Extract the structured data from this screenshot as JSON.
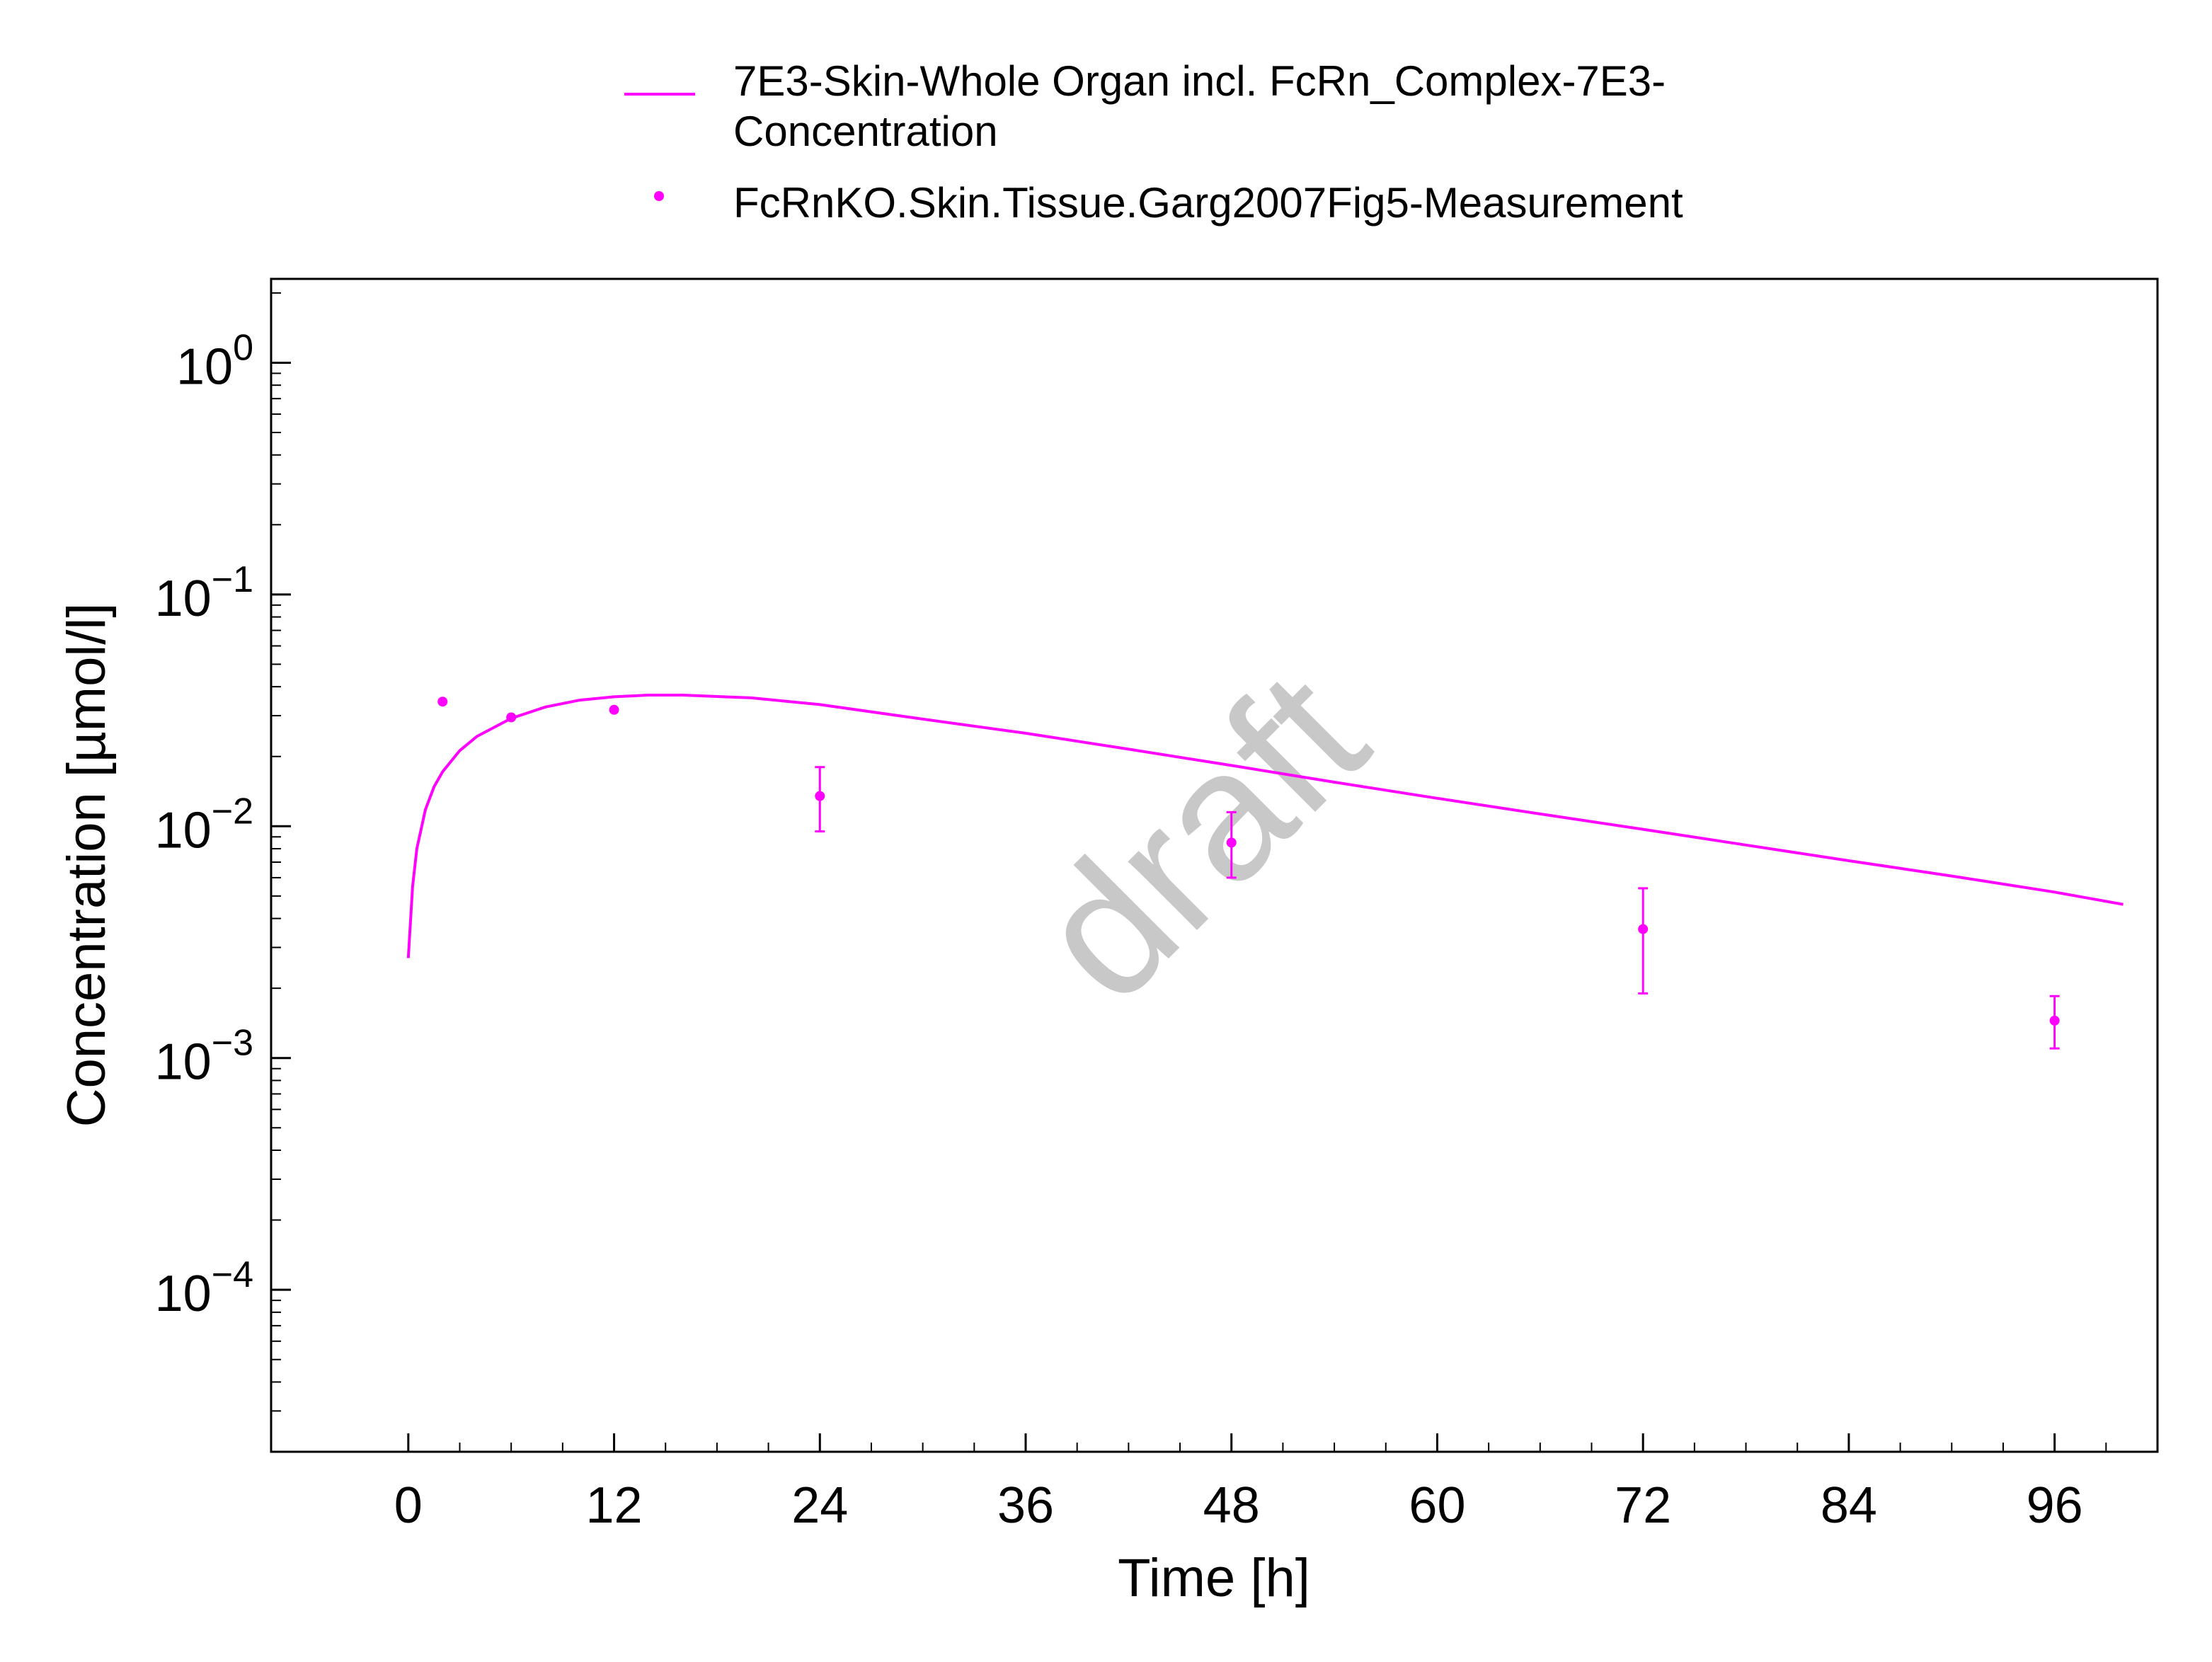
{
  "chart_data": {
    "type": "line",
    "xlabel": "Time [h]",
    "ylabel": "Concentration [µmol/l]",
    "y_scale": "log",
    "xlim": [
      -8,
      102
    ],
    "ylim": [
      2e-05,
      2.3
    ],
    "x_ticks": [
      0,
      12,
      24,
      36,
      48,
      60,
      72,
      84,
      96
    ],
    "x_tick_labels": [
      "0",
      "12",
      "24",
      "36",
      "48",
      "60",
      "72",
      "84",
      "96"
    ],
    "y_ticks": [
      {
        "value": 1,
        "base": "10",
        "exp": "0"
      },
      {
        "value": 0.1,
        "base": "10",
        "exp": "−1"
      },
      {
        "value": 0.01,
        "base": "10",
        "exp": "−2"
      },
      {
        "value": 0.001,
        "base": "10",
        "exp": "−3"
      },
      {
        "value": 0.0001,
        "base": "10",
        "exp": "−4"
      }
    ],
    "grid": false,
    "legend_position": "top",
    "watermark": "draft",
    "colors": {
      "series": "#ff00ff",
      "watermark": "#c8c8c8",
      "axis": "#000000"
    },
    "series": [
      {
        "name": "7E3-Skin-Whole Organ incl. FcRn_Complex-7E3-Concentration",
        "legend_lines": [
          "7E3-Skin-Whole Organ incl. FcRn_Complex-7E3-",
          "Concentration"
        ],
        "kind": "line",
        "x": [
          0,
          0.25,
          0.5,
          1,
          1.5,
          2,
          3,
          4,
          6,
          8,
          10,
          12,
          14,
          16,
          20,
          24,
          30,
          36,
          42,
          48,
          54,
          60,
          66,
          72,
          78,
          84,
          90,
          96,
          100
        ],
        "y": [
          0.0027,
          0.0055,
          0.008,
          0.0118,
          0.0148,
          0.0172,
          0.0212,
          0.0244,
          0.0292,
          0.0327,
          0.035,
          0.0362,
          0.0368,
          0.0368,
          0.0358,
          0.0335,
          0.029,
          0.0252,
          0.0215,
          0.0183,
          0.0155,
          0.0132,
          0.0113,
          0.0097,
          0.0083,
          0.0071,
          0.0061,
          0.0052,
          0.0046
        ]
      },
      {
        "name": "FcRnKO.Skin.Tissue.Garg2007Fig5-Measurement",
        "kind": "scatter",
        "x": [
          2,
          6,
          12,
          24,
          48,
          72,
          96
        ],
        "y": [
          0.0345,
          0.0295,
          0.0318,
          0.0135,
          0.0085,
          0.0036,
          0.00145
        ],
        "y_err_low": [
          null,
          null,
          null,
          0.0095,
          0.006,
          0.0019,
          0.0011
        ],
        "y_err_high": [
          null,
          null,
          null,
          0.018,
          0.0115,
          0.0054,
          0.00185
        ]
      }
    ]
  }
}
